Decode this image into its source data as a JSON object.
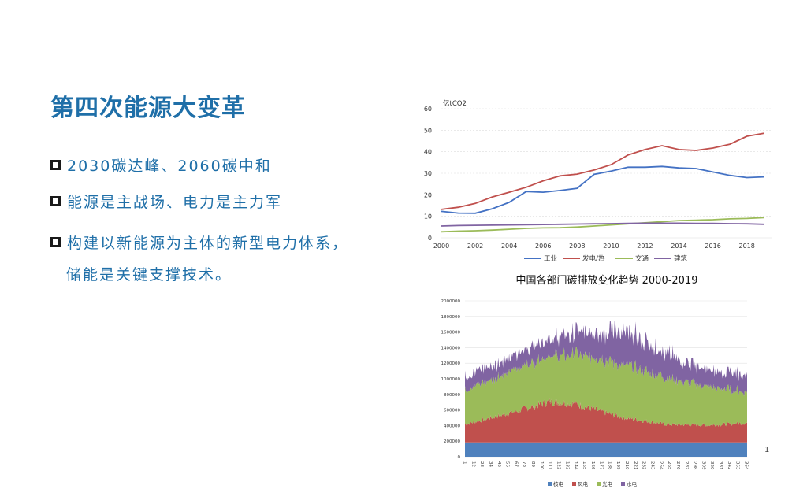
{
  "slide": {
    "title": "第四次能源大变革",
    "bullets": [
      "2030碳达峰、2060碳中和",
      "能源是主战场、电力是主力军",
      "构建以新能源为主体的新型电力体系，",
      "储能是关键支撑技术。"
    ],
    "page_number": "1"
  },
  "chart_data": [
    {
      "type": "line",
      "title": "中国各部门碳排放变化趋势 2000-2019",
      "ylabel": "亿tCO2",
      "ylim": [
        0,
        60
      ],
      "yticks": [
        0,
        10,
        20,
        30,
        40,
        50,
        60
      ],
      "xticks": [
        2000,
        2002,
        2004,
        2006,
        2008,
        2010,
        2012,
        2014,
        2016,
        2018
      ],
      "x": [
        2000,
        2001,
        2002,
        2003,
        2004,
        2005,
        2006,
        2007,
        2008,
        2009,
        2010,
        2011,
        2012,
        2013,
        2014,
        2015,
        2016,
        2017,
        2018,
        2019
      ],
      "legend": "bottom",
      "series": [
        {
          "name": "工业",
          "color": "#4472c4",
          "values": [
            12.3,
            11.5,
            11.4,
            13.5,
            16.5,
            21.5,
            21.2,
            22,
            23,
            29.5,
            31,
            32.8,
            32.8,
            33.2,
            32.5,
            32.2,
            30.6,
            29,
            28,
            28.3
          ]
        },
        {
          "name": "发电/热",
          "color": "#c0504d",
          "values": [
            13.2,
            14.2,
            16,
            19,
            21.2,
            23.5,
            26.5,
            28.8,
            29.6,
            31.5,
            34,
            38.5,
            41,
            42.8,
            41,
            40.6,
            41.7,
            43.5,
            47.2,
            48.6
          ]
        },
        {
          "name": "交通",
          "color": "#9bbb59",
          "values": [
            2.8,
            3.1,
            3.3,
            3.6,
            4,
            4.4,
            4.6,
            4.7,
            5,
            5.5,
            6,
            6.5,
            7,
            7.5,
            8,
            8.2,
            8.4,
            8.8,
            9,
            9.4
          ]
        },
        {
          "name": "建筑",
          "color": "#8064a2",
          "values": [
            5.5,
            5.7,
            5.8,
            5.9,
            6,
            6.1,
            6.2,
            6.3,
            6.4,
            6.5,
            6.6,
            6.7,
            6.8,
            6.8,
            6.8,
            6.7,
            6.7,
            6.6,
            6.5,
            6.3
          ]
        }
      ]
    },
    {
      "type": "area",
      "ylim": [
        0,
        2000000
      ],
      "yticks": [
        0,
        200000,
        400000,
        600000,
        800000,
        1000000,
        1200000,
        1400000,
        1600000,
        1800000,
        2000000
      ],
      "xticks": [
        1,
        12,
        23,
        34,
        45,
        56,
        67,
        78,
        89,
        100,
        111,
        122,
        133,
        144,
        155,
        166,
        177,
        188,
        199,
        210,
        221,
        232,
        243,
        254,
        265,
        276,
        287,
        298,
        309,
        320,
        331,
        342,
        353,
        364
      ],
      "legend": "bottom",
      "stacked": true,
      "series": [
        {
          "name": "核电",
          "color": "#4f81bd",
          "anchors": [
            [
              1,
              185000
            ],
            [
              365,
              185000
            ]
          ]
        },
        {
          "name": "风电",
          "color": "#c0504d",
          "anchors": [
            [
              1,
              230000
            ],
            [
              60,
              380000
            ],
            [
              110,
              520000
            ],
            [
              140,
              500000
            ],
            [
              200,
              330000
            ],
            [
              260,
              230000
            ],
            [
              320,
              220000
            ],
            [
              365,
              250000
            ]
          ]
        },
        {
          "name": "光电",
          "color": "#9bbb59",
          "anchors": [
            [
              1,
              450000
            ],
            [
              40,
              500000
            ],
            [
              80,
              560000
            ],
            [
              110,
              600000
            ],
            [
              150,
              650000
            ],
            [
              210,
              680000
            ],
            [
              250,
              620000
            ],
            [
              300,
              520000
            ],
            [
              340,
              450000
            ],
            [
              365,
              400000
            ]
          ]
        },
        {
          "name": "水电",
          "color": "#8064a2",
          "anchors": [
            [
              1,
              180000
            ],
            [
              60,
              180000
            ],
            [
              110,
              220000
            ],
            [
              160,
              300000
            ],
            [
              200,
              420000
            ],
            [
              240,
              380000
            ],
            [
              280,
              260000
            ],
            [
              320,
              200000
            ],
            [
              365,
              230000
            ]
          ]
        }
      ]
    }
  ]
}
